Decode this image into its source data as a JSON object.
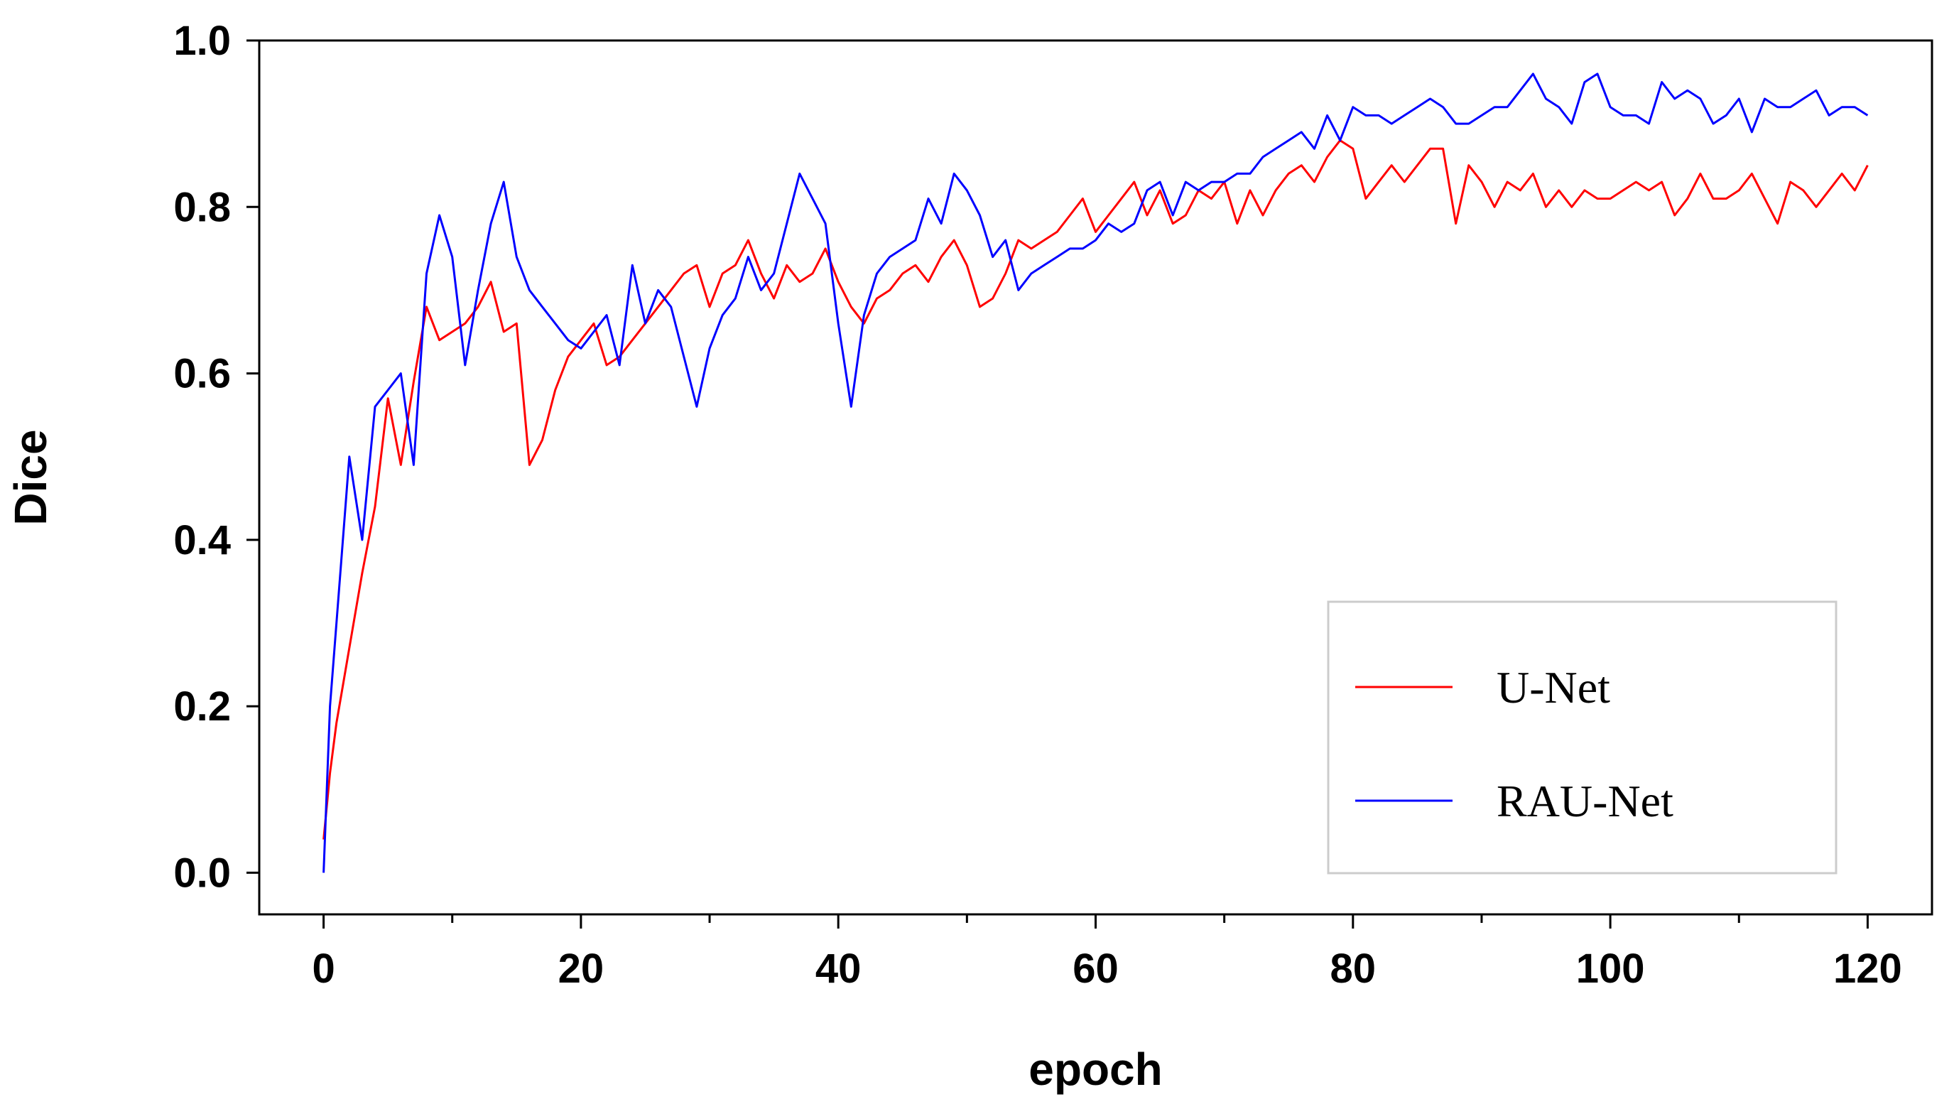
{
  "chart_data": {
    "type": "line",
    "xlabel": "epoch",
    "ylabel": "Dice",
    "xlim": [
      -5,
      125
    ],
    "ylim": [
      -0.05,
      1.0
    ],
    "xticks": [
      0,
      20,
      40,
      60,
      80,
      100,
      120
    ],
    "xtick_labels": [
      "0",
      "20",
      "40",
      "60",
      "80",
      "100",
      "120"
    ],
    "xminor": [
      10,
      30,
      50,
      70,
      90,
      110
    ],
    "yticks": [
      0.0,
      0.2,
      0.4,
      0.6,
      0.8,
      1.0
    ],
    "ytick_labels": [
      "0.0",
      "0.2",
      "0.4",
      "0.6",
      "0.8",
      "1.0"
    ],
    "grid": false,
    "legend_position": "lower-right",
    "series": [
      {
        "name": "U-Net",
        "color": "#ff0000",
        "x": [
          0,
          0.5,
          1,
          2,
          3,
          4,
          5,
          6,
          7,
          8,
          9,
          10,
          11,
          12,
          13,
          14,
          15,
          16,
          17,
          18,
          19,
          20,
          21,
          22,
          23,
          24,
          25,
          26,
          27,
          28,
          29,
          30,
          31,
          32,
          33,
          34,
          35,
          36,
          37,
          38,
          39,
          40,
          41,
          42,
          43,
          44,
          45,
          46,
          47,
          48,
          49,
          50,
          51,
          52,
          53,
          54,
          55,
          56,
          57,
          58,
          59,
          60,
          61,
          62,
          63,
          64,
          65,
          66,
          67,
          68,
          69,
          70,
          71,
          72,
          73,
          74,
          75,
          76,
          77,
          78,
          79,
          80,
          81,
          82,
          83,
          84,
          85,
          86,
          87,
          88,
          89,
          90,
          91,
          92,
          93,
          94,
          95,
          96,
          97,
          98,
          99,
          100,
          101,
          102,
          103,
          104,
          105,
          106,
          107,
          108,
          109,
          110,
          111,
          112,
          113,
          114,
          115,
          116,
          117,
          118,
          119,
          120
        ],
        "y": [
          0.04,
          0.12,
          0.18,
          0.27,
          0.36,
          0.44,
          0.57,
          0.49,
          0.59,
          0.68,
          0.64,
          0.65,
          0.66,
          0.68,
          0.71,
          0.65,
          0.66,
          0.49,
          0.52,
          0.58,
          0.62,
          0.64,
          0.66,
          0.61,
          0.62,
          0.64,
          0.66,
          0.68,
          0.7,
          0.72,
          0.73,
          0.68,
          0.72,
          0.73,
          0.76,
          0.72,
          0.69,
          0.73,
          0.71,
          0.72,
          0.75,
          0.71,
          0.68,
          0.66,
          0.69,
          0.7,
          0.72,
          0.73,
          0.71,
          0.74,
          0.76,
          0.73,
          0.68,
          0.69,
          0.72,
          0.76,
          0.75,
          0.76,
          0.77,
          0.79,
          0.81,
          0.77,
          0.79,
          0.81,
          0.83,
          0.79,
          0.82,
          0.78,
          0.79,
          0.82,
          0.81,
          0.83,
          0.78,
          0.82,
          0.79,
          0.82,
          0.84,
          0.85,
          0.83,
          0.86,
          0.88,
          0.87,
          0.81,
          0.83,
          0.85,
          0.83,
          0.85,
          0.87,
          0.87,
          0.78,
          0.85,
          0.83,
          0.8,
          0.83,
          0.82,
          0.84,
          0.8,
          0.82,
          0.8,
          0.82,
          0.81,
          0.81,
          0.82,
          0.83,
          0.82,
          0.83,
          0.79,
          0.81,
          0.84,
          0.81,
          0.81,
          0.82,
          0.84,
          0.81,
          0.78,
          0.83,
          0.82,
          0.8,
          0.82,
          0.84,
          0.82,
          0.85
        ]
      },
      {
        "name": "RAU-Net",
        "color": "#0000ff",
        "x": [
          0,
          0.5,
          1,
          2,
          3,
          4,
          5,
          6,
          7,
          8,
          9,
          10,
          11,
          12,
          13,
          14,
          15,
          16,
          17,
          18,
          19,
          20,
          21,
          22,
          23,
          24,
          25,
          26,
          27,
          28,
          29,
          30,
          31,
          32,
          33,
          34,
          35,
          36,
          37,
          38,
          39,
          40,
          41,
          42,
          43,
          44,
          45,
          46,
          47,
          48,
          49,
          50,
          51,
          52,
          53,
          54,
          55,
          56,
          57,
          58,
          59,
          60,
          61,
          62,
          63,
          64,
          65,
          66,
          67,
          68,
          69,
          70,
          71,
          72,
          73,
          74,
          75,
          76,
          77,
          78,
          79,
          80,
          81,
          82,
          83,
          84,
          85,
          86,
          87,
          88,
          89,
          90,
          91,
          92,
          93,
          94,
          95,
          96,
          97,
          98,
          99,
          100,
          101,
          102,
          103,
          104,
          105,
          106,
          107,
          108,
          109,
          110,
          111,
          112,
          113,
          114,
          115,
          116,
          117,
          118,
          119,
          120
        ],
        "y": [
          0.0,
          0.2,
          0.3,
          0.5,
          0.4,
          0.56,
          0.58,
          0.6,
          0.49,
          0.72,
          0.79,
          0.74,
          0.61,
          0.7,
          0.78,
          0.83,
          0.74,
          0.7,
          0.68,
          0.66,
          0.64,
          0.63,
          0.65,
          0.67,
          0.61,
          0.73,
          0.66,
          0.7,
          0.68,
          0.62,
          0.56,
          0.63,
          0.67,
          0.69,
          0.74,
          0.7,
          0.72,
          0.78,
          0.84,
          0.81,
          0.78,
          0.66,
          0.56,
          0.67,
          0.72,
          0.74,
          0.75,
          0.76,
          0.81,
          0.78,
          0.84,
          0.82,
          0.79,
          0.74,
          0.76,
          0.7,
          0.72,
          0.73,
          0.74,
          0.75,
          0.75,
          0.76,
          0.78,
          0.77,
          0.78,
          0.82,
          0.83,
          0.79,
          0.83,
          0.82,
          0.83,
          0.83,
          0.84,
          0.84,
          0.86,
          0.87,
          0.88,
          0.89,
          0.87,
          0.91,
          0.88,
          0.92,
          0.91,
          0.91,
          0.9,
          0.91,
          0.92,
          0.93,
          0.92,
          0.9,
          0.9,
          0.91,
          0.92,
          0.92,
          0.94,
          0.96,
          0.93,
          0.92,
          0.9,
          0.95,
          0.96,
          0.92,
          0.91,
          0.91,
          0.9,
          0.95,
          0.93,
          0.94,
          0.93,
          0.9,
          0.91,
          0.93,
          0.89,
          0.93,
          0.92,
          0.92,
          0.93,
          0.94,
          0.91,
          0.92,
          0.92,
          0.91
        ]
      }
    ]
  }
}
